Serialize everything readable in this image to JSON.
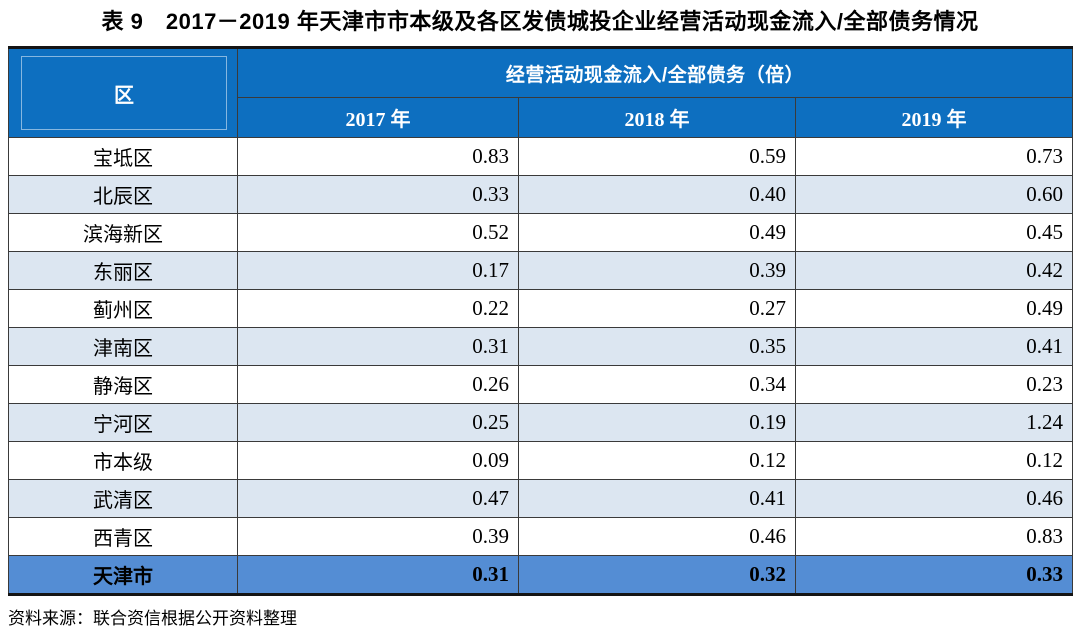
{
  "title": "表 9　2017－2019 年天津市市本级及各区发债城投企业经营活动现金流入/全部债务情况",
  "table": {
    "region_header": "区",
    "group_header": "经营活动现金流入/全部债务（倍）",
    "year_headers": [
      "2017 年",
      "2018 年",
      "2019 年"
    ],
    "rows": [
      {
        "region": "宝坻区",
        "values": [
          "0.83",
          "0.59",
          "0.73"
        ]
      },
      {
        "region": "北辰区",
        "values": [
          "0.33",
          "0.40",
          "0.60"
        ]
      },
      {
        "region": "滨海新区",
        "values": [
          "0.52",
          "0.49",
          "0.45"
        ]
      },
      {
        "region": "东丽区",
        "values": [
          "0.17",
          "0.39",
          "0.42"
        ]
      },
      {
        "region": "蓟州区",
        "values": [
          "0.22",
          "0.27",
          "0.49"
        ]
      },
      {
        "region": "津南区",
        "values": [
          "0.31",
          "0.35",
          "0.41"
        ]
      },
      {
        "region": "静海区",
        "values": [
          "0.26",
          "0.34",
          "0.23"
        ]
      },
      {
        "region": "宁河区",
        "values": [
          "0.25",
          "0.19",
          "1.24"
        ]
      },
      {
        "region": "市本级",
        "values": [
          "0.09",
          "0.12",
          "0.12"
        ]
      },
      {
        "region": "武清区",
        "values": [
          "0.47",
          "0.41",
          "0.46"
        ]
      },
      {
        "region": "西青区",
        "values": [
          "0.39",
          "0.46",
          "0.83"
        ]
      }
    ],
    "total_row": {
      "region": "天津市",
      "values": [
        "0.31",
        "0.32",
        "0.33"
      ]
    }
  },
  "footer": "资料来源：联合资信根据公开资料整理",
  "colors": {
    "header_bg": "#0d6fc0",
    "header_text": "#ffffff",
    "alt_row_bg": "#dce6f1",
    "total_row_bg": "#548dd4",
    "grid_line": "#3a3a3a"
  }
}
